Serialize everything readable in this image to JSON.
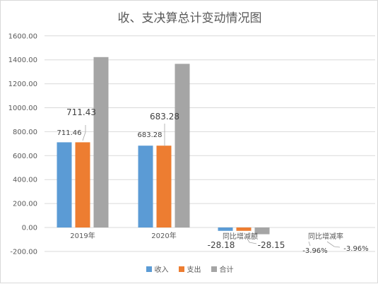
{
  "chart_data": {
    "type": "bar",
    "title": "收、支决算总计变动情况图",
    "categories": [
      "2019年",
      "2020年",
      "同比增减额",
      "同比增减率"
    ],
    "ylim": [
      -200,
      1600
    ],
    "yticks": [
      "-200.00",
      "0.00",
      "200.00",
      "400.00",
      "600.00",
      "800.00",
      "1000.00",
      "1200.00",
      "1400.00",
      "1600.00"
    ],
    "ytick_values": [
      -200,
      0,
      200,
      400,
      600,
      800,
      1000,
      1200,
      1400,
      1600
    ],
    "grid": true,
    "legend_position": "bottom",
    "series": [
      {
        "name": "收入",
        "color": "#5b9bd5",
        "values": [
          711.46,
          683.28,
          -28.18,
          -3.96
        ],
        "labels": [
          "711.46",
          "683.28",
          "-28.18",
          "-3.96%"
        ]
      },
      {
        "name": "支出",
        "color": "#ed7d31",
        "values": [
          711.43,
          683.28,
          -28.15,
          -3.96
        ],
        "labels": [
          "711.43",
          "683.28",
          "-28.15",
          "-3.96%"
        ]
      },
      {
        "name": "合计",
        "color": "#a5a5a5",
        "values": [
          1422.89,
          1366.56,
          -56.33,
          -7.92
        ],
        "labels": [
          "",
          "",
          "",
          ""
        ]
      }
    ]
  }
}
